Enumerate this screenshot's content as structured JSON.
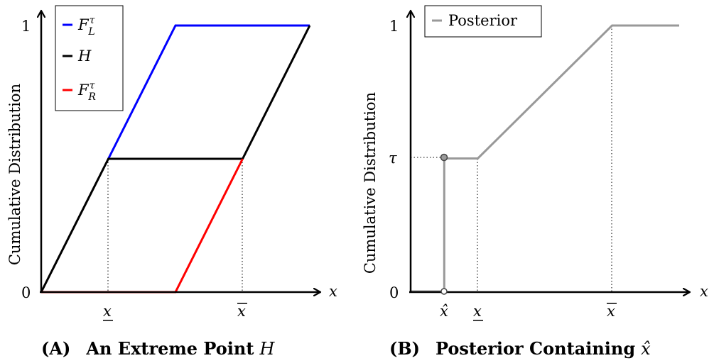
{
  "chart_data": [
    {
      "type": "line",
      "caption_tag": "(A)",
      "caption_title": "An Extreme Point",
      "caption_symbol": "H",
      "ylabel": "Cumulative Distribution",
      "xlabel": "x",
      "ytick_labels": [
        "0",
        "1"
      ],
      "xtick_labels": [
        "x",
        "x"
      ],
      "ylim": [
        0,
        1
      ],
      "series": [
        {
          "name": "F",
          "name_sup": "τ",
          "name_sub": "L",
          "color": "#0000ff",
          "x": [
            0.5,
            1.0,
            2.0
          ],
          "y": [
            0.5,
            1.0,
            1.0
          ]
        },
        {
          "name": "H",
          "color": "#000000",
          "x": [
            0.0,
            0.5,
            1.5,
            2.0
          ],
          "y": [
            0.0,
            0.5,
            0.5,
            1.0
          ]
        },
        {
          "name": "F",
          "name_sup": "τ",
          "name_sub": "R",
          "color": "#ff0000",
          "x": [
            0.0,
            1.0,
            1.5
          ],
          "y": [
            0.0,
            0.0,
            0.5
          ]
        }
      ],
      "legend": "top-left"
    },
    {
      "type": "line",
      "caption_tag": "(B)",
      "caption_title": "Posterior Containing",
      "caption_symbol": "x̂",
      "ylabel": "Cumulative Distribution",
      "xlabel": "x",
      "ytick_labels": [
        "0",
        "τ",
        "1"
      ],
      "xtick_labels": [
        "x̂",
        "x",
        "x"
      ],
      "ylim": [
        0,
        1
      ],
      "series": [
        {
          "name": "Posterior",
          "color": "#999999",
          "x": [
            0.0,
            0.25,
            0.25,
            0.5,
            1.5,
            2.0
          ],
          "y": [
            0.0,
            0.0,
            0.5,
            0.5,
            1.0,
            1.0
          ]
        }
      ],
      "legend": "top-left"
    }
  ]
}
